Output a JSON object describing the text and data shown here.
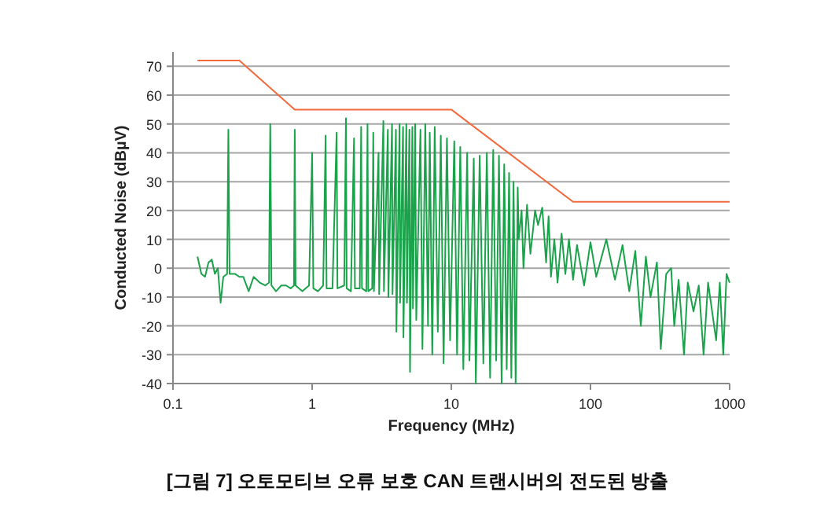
{
  "chart_data": {
    "type": "line",
    "xlabel": "Frequency (MHz)",
    "ylabel": "Conducted Noise (dBµV)",
    "log": "x",
    "grid": "y",
    "line_style": "solid",
    "xlim": [
      0.1,
      1000
    ],
    "xticks": [
      0.1,
      1,
      10,
      100,
      1000
    ],
    "ylim": [
      -40,
      75
    ],
    "yticks": [
      -40,
      -30,
      -20,
      -10,
      0,
      10,
      20,
      30,
      40,
      50,
      60,
      70
    ],
    "annotations": [
      "[그림 7] 오토모티브 오류 보호 CAN 트랜시버의 전도된 방출"
    ],
    "series": [
      {
        "color": "#1aa34a",
        "x": [
          0.15,
          0.16,
          0.17,
          0.18,
          0.19,
          0.2,
          0.21,
          0.22,
          0.23,
          0.245,
          0.25,
          0.255,
          0.28,
          0.3,
          0.32,
          0.35,
          0.38,
          0.42,
          0.46,
          0.49,
          0.5,
          0.51,
          0.55,
          0.6,
          0.65,
          0.7,
          0.74,
          0.75,
          0.76,
          0.85,
          0.95,
          1.0,
          1.02,
          1.1,
          1.2,
          1.25,
          1.27,
          1.4,
          1.5,
          1.52,
          1.7,
          1.75,
          1.77,
          1.9,
          2.0,
          2.03,
          2.2,
          2.25,
          2.28,
          2.45,
          2.5,
          2.53,
          2.7,
          2.75,
          2.78,
          3.0,
          3.03,
          3.25,
          3.28,
          3.5,
          3.53,
          3.75,
          3.78,
          4.0,
          4.03,
          4.25,
          4.28,
          4.5,
          4.53,
          4.75,
          4.8,
          5.0,
          5.05,
          5.25,
          5.3,
          5.5,
          5.6,
          6,
          6.2,
          6.5,
          6.8,
          7,
          7.3,
          7.6,
          8,
          8.4,
          8.8,
          9.3,
          9.8,
          10.5,
          11,
          11.6,
          12.2,
          13,
          13.5,
          14.5,
          15,
          16,
          17,
          18,
          19,
          20,
          21,
          22,
          23,
          24,
          25,
          26,
          27,
          28,
          29,
          30,
          30.5,
          32,
          33,
          35,
          37,
          40,
          42,
          45,
          48,
          50,
          52,
          55,
          58,
          62,
          66,
          70,
          75,
          80,
          90,
          100,
          110,
          130,
          150,
          170,
          190,
          210,
          230,
          250,
          270,
          300,
          320,
          350,
          380,
          400,
          430,
          470,
          500,
          550,
          600,
          650,
          700,
          800,
          850,
          900,
          950,
          1000
        ],
        "values": [
          4,
          -2,
          -3,
          2,
          3,
          -2,
          0,
          -12,
          -3,
          -2,
          48,
          -2,
          -2,
          -3,
          -3,
          -8,
          -3,
          -5,
          -6,
          -5,
          50,
          -6,
          -8,
          -6,
          -6,
          -7,
          -6,
          48,
          -6,
          -8,
          -6,
          40,
          -7,
          -8,
          -6,
          46,
          -7,
          -7,
          47,
          -7,
          -6,
          52,
          -7,
          -8,
          45,
          -7,
          -7,
          49,
          -7,
          -8,
          50,
          -8,
          -7,
          47,
          -8,
          40,
          -9,
          51,
          -8,
          48,
          -10,
          50,
          -9,
          48,
          -22,
          50,
          -12,
          49,
          -24,
          50,
          -12,
          48,
          -36,
          49,
          -14,
          50,
          -18,
          48,
          -28,
          50,
          -20,
          47,
          -30,
          49,
          -22,
          46,
          -33,
          45,
          -25,
          44,
          -30,
          42,
          -35,
          40,
          -32,
          38,
          -40,
          39,
          -33,
          40,
          -38,
          41,
          -32,
          39,
          -40,
          36,
          -35,
          33,
          -38,
          30,
          -40,
          28,
          10,
          20,
          0,
          22,
          5,
          20,
          15,
          21,
          2,
          18,
          -3,
          10,
          -5,
          12,
          -2,
          10,
          -4,
          8,
          -6,
          9,
          -3,
          10,
          -4,
          8,
          -8,
          6,
          -20,
          4,
          -10,
          2,
          -28,
          -2,
          0,
          -20,
          -4,
          -30,
          -5,
          -15,
          -6,
          -30,
          -5,
          -25,
          -5,
          -30,
          -2,
          -5
        ]
      },
      {
        "color": "#f26a3c",
        "x": [
          0.15,
          0.3,
          0.75,
          10,
          75,
          1000
        ],
        "values": [
          72,
          72,
          55,
          55,
          23,
          23
        ]
      }
    ]
  }
}
